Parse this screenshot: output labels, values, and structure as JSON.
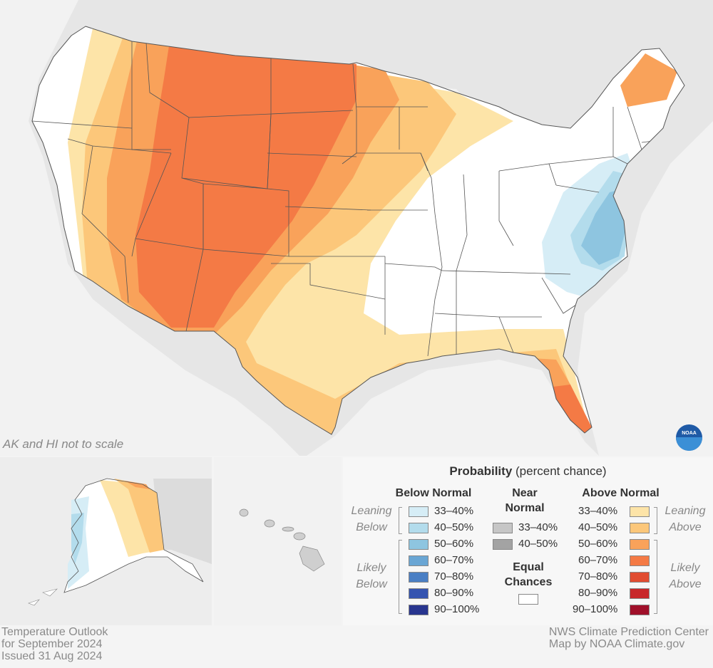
{
  "map": {
    "note": "AK and HI not to scale",
    "logo_text": "NOAA"
  },
  "legend": {
    "title_bold": "Probability",
    "title_rest": " (percent chance)",
    "below_head": "Below Normal",
    "near_head_1": "Near",
    "near_head_2": "Normal",
    "above_head": "Above Normal",
    "equal_head_1": "Equal",
    "equal_head_2": "Chances",
    "leaning_below_1": "Leaning",
    "leaning_below_2": "Below",
    "likely_below_1": "Likely",
    "likely_below_2": "Below",
    "leaning_above_1": "Leaning",
    "leaning_above_2": "Above",
    "likely_above_1": "Likely",
    "likely_above_2": "Above",
    "below": [
      {
        "label": "33–40%",
        "color": "#d6edf6"
      },
      {
        "label": "40–50%",
        "color": "#b3dcec"
      },
      {
        "label": "50–60%",
        "color": "#8ec5e0"
      },
      {
        "label": "60–70%",
        "color": "#6aa6d4"
      },
      {
        "label": "70–80%",
        "color": "#4a7fc4"
      },
      {
        "label": "80–90%",
        "color": "#3554b0"
      },
      {
        "label": "90–100%",
        "color": "#28358f"
      }
    ],
    "near": [
      {
        "label": "33–40%",
        "color": "#c6c6c6"
      },
      {
        "label": "40–50%",
        "color": "#a3a3a3"
      }
    ],
    "above": [
      {
        "label": "33–40%",
        "color": "#fde4a8"
      },
      {
        "label": "40–50%",
        "color": "#fcc77a"
      },
      {
        "label": "50–60%",
        "color": "#f9a25a"
      },
      {
        "label": "60–70%",
        "color": "#f47a45"
      },
      {
        "label": "70–80%",
        "color": "#e14c31"
      },
      {
        "label": "80–90%",
        "color": "#c8272a"
      },
      {
        "label": "90–100%",
        "color": "#a0102a"
      }
    ]
  },
  "footer": {
    "left_1": "Temperature Outlook",
    "left_2": "for September 2024",
    "left_3": "Issued 31 Aug 2024",
    "right_1": "NWS Climate Prediction Center",
    "right_2": "Map by NOAA Climate.gov"
  }
}
